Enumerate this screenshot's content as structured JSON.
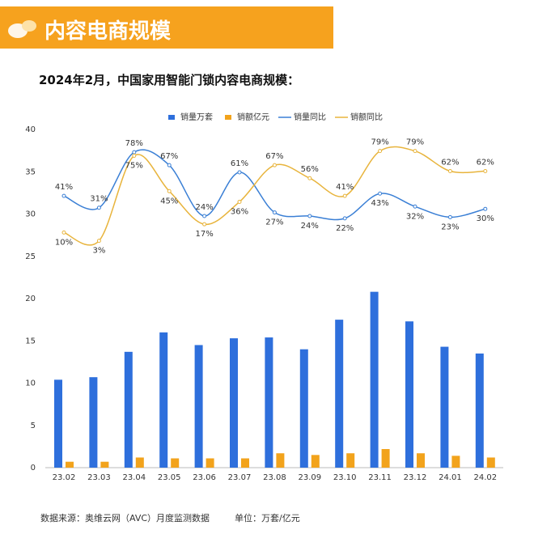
{
  "header": {
    "title": "内容电商规模"
  },
  "chart_data": {
    "type": "bar",
    "title": "2024年2月，中国家用智能门锁内容电商规模：",
    "categories": [
      "23.02",
      "23.03",
      "23.04",
      "23.05",
      "23.06",
      "23.07",
      "23.08",
      "23.09",
      "23.10",
      "23.11",
      "23.12",
      "24.01",
      "24.02"
    ],
    "series": [
      {
        "name": "销量万套",
        "type": "bar",
        "color": "#2e6fdc",
        "values": [
          10.4,
          10.7,
          13.7,
          16.0,
          14.5,
          15.3,
          15.4,
          14.0,
          17.5,
          20.8,
          17.3,
          14.3,
          13.5
        ]
      },
      {
        "name": "销额亿元",
        "type": "bar",
        "color": "#f2a31c",
        "values": [
          0.7,
          0.7,
          1.2,
          1.1,
          1.1,
          1.1,
          1.7,
          1.5,
          1.7,
          2.2,
          1.7,
          1.4,
          1.2
        ]
      },
      {
        "name": "销量同比",
        "type": "line",
        "axis": "y2",
        "color": "#3a7fd5",
        "values": [
          41,
          31,
          78,
          67,
          24,
          61,
          27,
          24,
          22,
          43,
          32,
          23,
          30
        ],
        "value_labels": [
          "41%",
          "31%",
          "78%",
          "67%",
          "24%",
          "61%",
          "27%",
          "24%",
          "22%",
          "43%",
          "32%",
          "23%",
          "30%"
        ]
      },
      {
        "name": "销额同比",
        "type": "line",
        "axis": "y2",
        "color": "#e8b43c",
        "values": [
          10,
          3,
          75,
          45,
          17,
          36,
          67,
          56,
          41,
          79,
          79,
          62,
          62
        ],
        "value_labels": [
          "10%",
          "3%",
          "75%",
          "45%",
          "17%",
          "36%",
          "67%",
          "56%",
          "41%",
          "79%",
          "79%",
          "62%",
          "62%"
        ]
      }
    ],
    "ylim": [
      0,
      40
    ],
    "yticks": [
      0,
      5,
      10,
      15,
      20,
      25,
      30,
      35,
      40
    ],
    "y2lim": [
      0,
      100
    ],
    "source": "数据来源：奥维云网（AVC）月度监测数据",
    "unit": "单位：万套/亿元"
  }
}
